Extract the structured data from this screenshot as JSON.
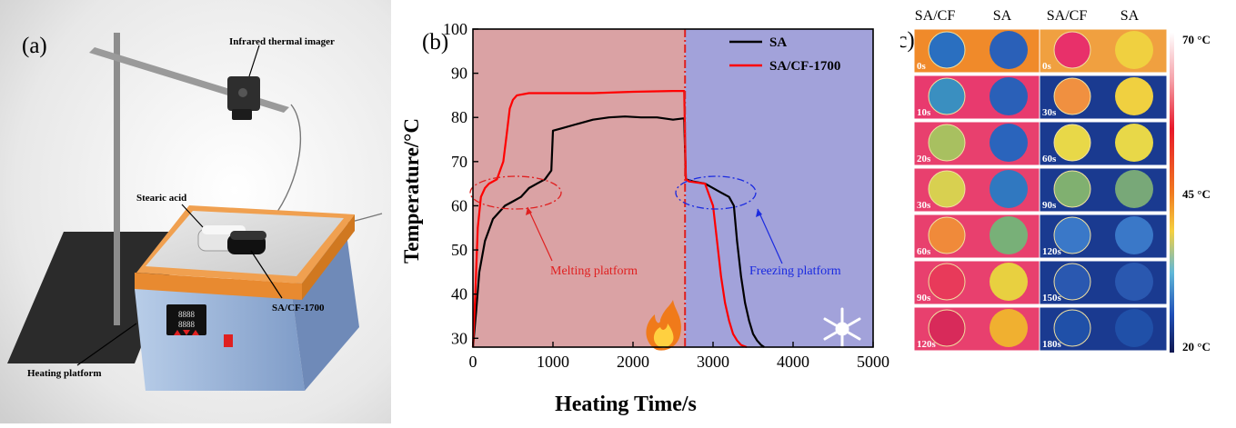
{
  "panel_a": {
    "label": "(a)",
    "callouts": {
      "imager": "Infrared thermal  imager",
      "stearic": "Stearic acid",
      "composite": "SA/CF-1700",
      "platform": "Heating platform"
    },
    "display_digits": "8888"
  },
  "panel_b": {
    "label": "(b)",
    "annotations": {
      "melting": "Melting platform",
      "freezing": "Freezing platform"
    }
  },
  "panel_c": {
    "label": "(c)",
    "headers": [
      "SA/CF",
      "SA",
      "SA/CF",
      "SA"
    ],
    "heating_times": [
      "0s",
      "10s",
      "20s",
      "30s",
      "60s",
      "90s",
      "120s"
    ],
    "cooling_times": [
      "0s",
      "30s",
      "60s",
      "90s",
      "120s",
      "150s",
      "180s"
    ],
    "scale_labels": {
      "max": "70 °C",
      "mid": "45 °C",
      "min": "20 °C"
    },
    "colors": {
      "heating": [
        {
          "bg": "#f08a2a",
          "sacf": "#2a6fc0",
          "sa": "#2a60b8"
        },
        {
          "bg": "#e83a6e",
          "sacf": "#3a8fc0",
          "sa": "#2a60b8"
        },
        {
          "bg": "#e8406e",
          "sacf": "#a8c060",
          "sa": "#2a64bc"
        },
        {
          "bg": "#e8406e",
          "sacf": "#d8d050",
          "sa": "#3078c0"
        },
        {
          "bg": "#e8406e",
          "sacf": "#f08a3a",
          "sa": "#78b078"
        },
        {
          "bg": "#e8406e",
          "sacf": "#e83a5a",
          "sa": "#e8d040"
        },
        {
          "bg": "#e8406e",
          "sacf": "#d82a5a",
          "sa": "#f0b030"
        }
      ],
      "cooling": [
        {
          "bg": "#f0a040",
          "sacf": "#e8306a",
          "sa": "#f0d040"
        },
        {
          "bg": "#1a3a90",
          "sacf": "#f09040",
          "sa": "#f0d040"
        },
        {
          "bg": "#1a3a90",
          "sacf": "#e8d848",
          "sa": "#e8d848"
        },
        {
          "bg": "#1a3a90",
          "sacf": "#80b070",
          "sa": "#78a878"
        },
        {
          "bg": "#1a3a90",
          "sacf": "#3a78c8",
          "sa": "#3a78c8"
        },
        {
          "bg": "#1a3a90",
          "sacf": "#2a58b0",
          "sa": "#2a58b0"
        },
        {
          "bg": "#1a3a90",
          "sacf": "#2050a8",
          "sa": "#2050a8"
        }
      ]
    }
  },
  "chart_data": {
    "type": "line",
    "xlabel": "Heating Time/s",
    "ylabel": "Temperature/°C",
    "xlim": [
      0,
      5000
    ],
    "ylim": [
      28,
      100
    ],
    "xticks": [
      "0",
      "1000",
      "2000",
      "3000",
      "4000",
      "5000"
    ],
    "yticks": [
      "30",
      "40",
      "50",
      "60",
      "70",
      "80",
      "90",
      "100"
    ],
    "divider_x": 2650,
    "region_colors": {
      "heating": "#daa2a4",
      "cooling": "#a2a2da"
    },
    "legend_position": "top-right",
    "series": [
      {
        "name": "SA",
        "color": "#000000",
        "x": [
          0,
          40,
          80,
          150,
          250,
          400,
          500,
          600,
          700,
          800,
          900,
          980,
          1000,
          1100,
          1300,
          1500,
          1700,
          1900,
          2100,
          2300,
          2500,
          2640,
          2660,
          2750,
          2900,
          3100,
          3200,
          3260,
          3300,
          3350,
          3400,
          3450,
          3500,
          3550,
          3600,
          3640
        ],
        "y": [
          28,
          36,
          45,
          52,
          57,
          60,
          61,
          62,
          64,
          65,
          66,
          68,
          77,
          77.5,
          78.5,
          79.5,
          80,
          80.2,
          80,
          80,
          79.5,
          79.8,
          66,
          65.5,
          65,
          63,
          62,
          60,
          52,
          44,
          38,
          34,
          31,
          29.5,
          28.5,
          28
        ]
      },
      {
        "name": "SA/CF-1700",
        "color": "#ff0000",
        "x": [
          0,
          30,
          60,
          100,
          150,
          200,
          300,
          380,
          420,
          460,
          500,
          550,
          700,
          1000,
          1500,
          2000,
          2500,
          2640,
          2660,
          2700,
          2900,
          3000,
          3050,
          3100,
          3150,
          3200,
          3250,
          3300,
          3350,
          3420
        ],
        "y": [
          28,
          40,
          55,
          62,
          64,
          65,
          66,
          70,
          76,
          82,
          84,
          85,
          85.5,
          85.5,
          85.5,
          85.8,
          86,
          86,
          66,
          65.5,
          65,
          60,
          52,
          44,
          38,
          34,
          31,
          29.5,
          28.5,
          28
        ]
      }
    ]
  }
}
